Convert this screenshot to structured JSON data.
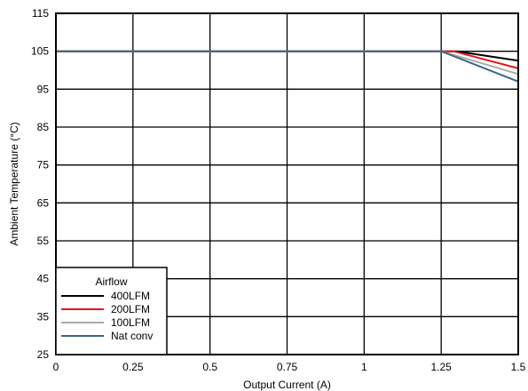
{
  "chart_data": {
    "type": "line",
    "xlabel": "Output Current (A)",
    "ylabel": "Ambient Temperature (°C)",
    "xlim": [
      0,
      1.5
    ],
    "ylim": [
      25,
      115
    ],
    "x_ticks": [
      "0",
      "0.25",
      "0.5",
      "0.75",
      "1",
      "1.25",
      "1.5"
    ],
    "y_ticks": [
      "25",
      "35",
      "45",
      "55",
      "65",
      "75",
      "85",
      "95",
      "105",
      "115"
    ],
    "grid": true,
    "legend": {
      "title": "Airflow",
      "placement": "bottom-left"
    },
    "series": [
      {
        "name": "400LFM",
        "color": "#000000",
        "x": [
          0,
          1.25,
          1.3,
          1.5
        ],
        "y": [
          105,
          105,
          105,
          102.5
        ]
      },
      {
        "name": "200LFM",
        "color": "#e8141b",
        "x": [
          0,
          1.25,
          1.29,
          1.5
        ],
        "y": [
          105,
          105,
          105,
          100.5
        ]
      },
      {
        "name": "100LFM",
        "color": "#aaaaaa",
        "x": [
          0,
          1.25,
          1.5
        ],
        "y": [
          105,
          105,
          99
        ]
      },
      {
        "name": "Nat conv",
        "color": "#3d6680",
        "x": [
          0,
          1.25,
          1.5
        ],
        "y": [
          105,
          105,
          97
        ]
      }
    ]
  }
}
